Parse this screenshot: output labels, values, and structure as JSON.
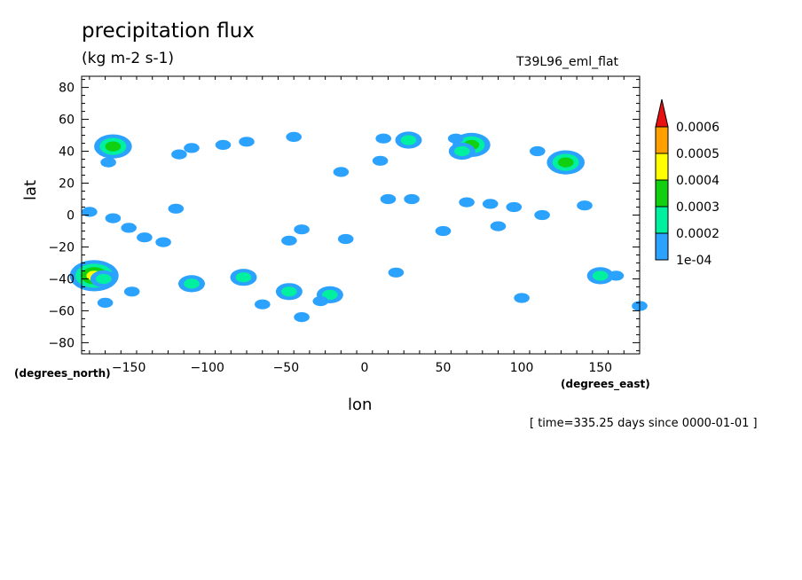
{
  "header": {
    "title": "precipitation flux",
    "units": "(kg m-2 s-1)",
    "model": "T39L96_eml_flat"
  },
  "footer": {
    "time": "[ time=335.25 days since 0000-01-01 ]"
  },
  "chart_data": {
    "type": "heatmap",
    "title": "precipitation flux",
    "subtitle": "(kg m-2 s-1)",
    "xlabel": "lon",
    "ylabel": "lat",
    "x_unit_label": "(degrees_east)",
    "y_unit_label": "(degrees_north)",
    "xlim": [
      -180,
      175
    ],
    "ylim": [
      -87,
      87
    ],
    "x_ticks": [
      -150,
      -100,
      -50,
      0,
      50,
      100,
      150
    ],
    "y_ticks": [
      -80,
      -60,
      -40,
      -20,
      0,
      20,
      40,
      60,
      80
    ],
    "grid": false,
    "colorbar": {
      "labels": [
        "1e-04",
        "0.0002",
        "0.0003",
        "0.0004",
        "0.0005",
        "0.0006"
      ],
      "levels": [
        0.0001,
        0.0002,
        0.0003,
        0.0004,
        0.0005,
        0.0006
      ],
      "colors": [
        "#2ca2ff",
        "#00f0a0",
        "#10d010",
        "#ffff00",
        "#ffa000",
        "#e81010"
      ],
      "extend": "max"
    },
    "cells": [
      {
        "lon": -160,
        "lat": 43,
        "level": 3
      },
      {
        "lon": -163,
        "lat": 33,
        "level": 1
      },
      {
        "lon": -172,
        "lat": -38,
        "level": 4
      },
      {
        "lon": -166,
        "lat": -40,
        "level": 2
      },
      {
        "lon": -175,
        "lat": 2,
        "level": 1
      },
      {
        "lon": -160,
        "lat": -2,
        "level": 1
      },
      {
        "lon": -150,
        "lat": -8,
        "level": 1
      },
      {
        "lon": -140,
        "lat": -14,
        "level": 1
      },
      {
        "lon": -128,
        "lat": -17,
        "level": 1
      },
      {
        "lon": -165,
        "lat": -55,
        "level": 1
      },
      {
        "lon": -148,
        "lat": -48,
        "level": 1
      },
      {
        "lon": -118,
        "lat": 38,
        "level": 1
      },
      {
        "lon": -110,
        "lat": 42,
        "level": 1
      },
      {
        "lon": -90,
        "lat": 44,
        "level": 1
      },
      {
        "lon": -75,
        "lat": 46,
        "level": 1
      },
      {
        "lon": -120,
        "lat": 4,
        "level": 1
      },
      {
        "lon": -112,
        "lat": -44,
        "level": 1
      },
      {
        "lon": -110,
        "lat": -43,
        "level": 2
      },
      {
        "lon": -77,
        "lat": -39,
        "level": 2
      },
      {
        "lon": -65,
        "lat": -56,
        "level": 1
      },
      {
        "lon": -48,
        "lat": -48,
        "level": 2
      },
      {
        "lon": -22,
        "lat": -50,
        "level": 2
      },
      {
        "lon": -28,
        "lat": -54,
        "level": 1
      },
      {
        "lon": -40,
        "lat": -64,
        "level": 1
      },
      {
        "lon": -40,
        "lat": -9,
        "level": 1
      },
      {
        "lon": -48,
        "lat": -16,
        "level": 1
      },
      {
        "lon": -12,
        "lat": -15,
        "level": 1
      },
      {
        "lon": -45,
        "lat": 49,
        "level": 1
      },
      {
        "lon": -15,
        "lat": 27,
        "level": 1
      },
      {
        "lon": 15,
        "lat": 10,
        "level": 1
      },
      {
        "lon": 30,
        "lat": 10,
        "level": 1
      },
      {
        "lon": 12,
        "lat": 48,
        "level": 1
      },
      {
        "lon": 28,
        "lat": 47,
        "level": 2
      },
      {
        "lon": 10,
        "lat": 34,
        "level": 1
      },
      {
        "lon": 68,
        "lat": 44,
        "level": 3
      },
      {
        "lon": 62,
        "lat": 40,
        "level": 2
      },
      {
        "lon": 58,
        "lat": 48,
        "level": 1
      },
      {
        "lon": 65,
        "lat": 8,
        "level": 1
      },
      {
        "lon": 80,
        "lat": 7,
        "level": 1
      },
      {
        "lon": 95,
        "lat": 5,
        "level": 1
      },
      {
        "lon": 113,
        "lat": 0,
        "level": 1
      },
      {
        "lon": 140,
        "lat": 6,
        "level": 1
      },
      {
        "lon": 128,
        "lat": 33,
        "level": 3
      },
      {
        "lon": 110,
        "lat": 40,
        "level": 1
      },
      {
        "lon": 85,
        "lat": -7,
        "level": 1
      },
      {
        "lon": 50,
        "lat": -10,
        "level": 1
      },
      {
        "lon": 20,
        "lat": -36,
        "level": 1
      },
      {
        "lon": 100,
        "lat": -52,
        "level": 1
      },
      {
        "lon": 150,
        "lat": -38,
        "level": 2
      },
      {
        "lon": 160,
        "lat": -38,
        "level": 1
      },
      {
        "lon": 175,
        "lat": -57,
        "level": 1
      }
    ]
  }
}
